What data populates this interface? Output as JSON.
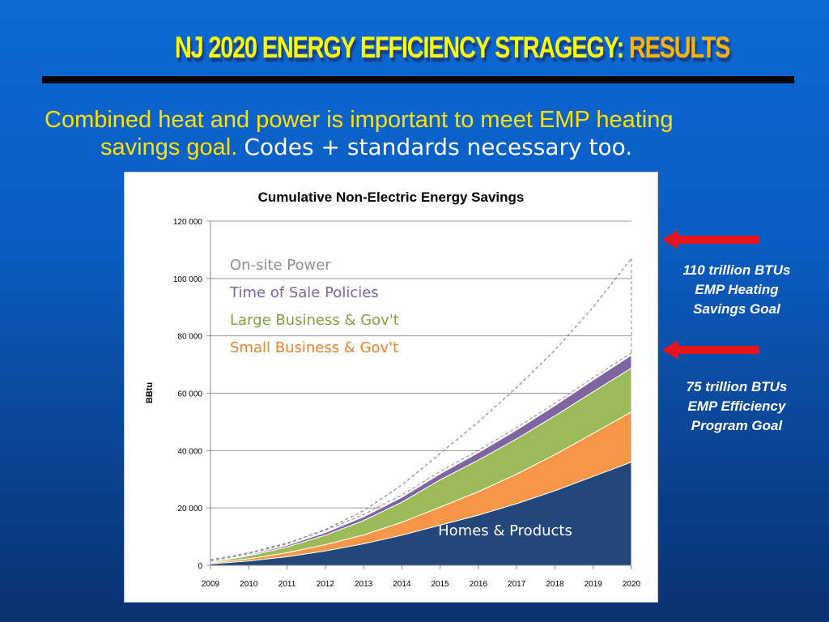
{
  "slide": {
    "title_main": "NJ 2020 ENERGY EFFICIENCY STRAGEGY:",
    "title_accent": "RESULTS",
    "subtitle_yellow_1": "Combined heat and power is important to meet EMP heating",
    "subtitle_yellow_2": "savings goal.",
    "subtitle_white": "Codes + standards necessary too.",
    "notes": [
      {
        "lines": [
          "110 trillion BTUs",
          "EMP Heating",
          "Savings Goal"
        ]
      },
      {
        "lines": [
          "75 trillion BTUs",
          "EMP Efficiency",
          "Program Goal"
        ]
      }
    ],
    "arrow_color": "#e8141c"
  },
  "chart_data": {
    "type": "area",
    "stacked": true,
    "title": "Cumulative Non-Electric Energy Savings",
    "xlabel": "",
    "ylabel": "BBtu",
    "categories": [
      "2009",
      "2010",
      "2011",
      "2012",
      "2013",
      "2014",
      "2015",
      "2016",
      "2017",
      "2018",
      "2019",
      "2020"
    ],
    "ylim": [
      0,
      120000
    ],
    "yticks": [
      0,
      20000,
      40000,
      60000,
      80000,
      100000,
      120000
    ],
    "ytick_labels": [
      "0",
      "20 000",
      "40 000",
      "60 000",
      "80 000",
      "100 000",
      "120 000"
    ],
    "grid": true,
    "legend": "none (labels inside areas)",
    "series": [
      {
        "name": "Homes & Products",
        "color": "#23477b",
        "values": [
          500,
          1500,
          3000,
          5000,
          7500,
          10500,
          14000,
          17500,
          21500,
          26000,
          31000,
          36000
        ]
      },
      {
        "name": "Small Business & Gov't",
        "color": "#f79646",
        "values": [
          300,
          800,
          1400,
          2200,
          3100,
          4500,
          6300,
          8200,
          10300,
          12600,
          15000,
          17500
        ]
      },
      {
        "name": "Large Business & Gov't",
        "color": "#9bbb59",
        "values": [
          300,
          1000,
          2000,
          3300,
          5000,
          7000,
          9500,
          11000,
          12300,
          13500,
          14500,
          15300
        ]
      },
      {
        "name": "Time of Sale Policies",
        "color": "#8064a2",
        "values": [
          100,
          300,
          600,
          900,
          1300,
          1700,
          2100,
          2600,
          3100,
          3600,
          4100,
          4500
        ]
      }
    ],
    "dashed_total": {
      "name": "On-site Power",
      "color": "#888888",
      "values": [
        1500,
        4000,
        7500,
        12500,
        19000,
        28000,
        39000,
        50000,
        62000,
        75000,
        90000,
        107000
      ]
    }
  }
}
